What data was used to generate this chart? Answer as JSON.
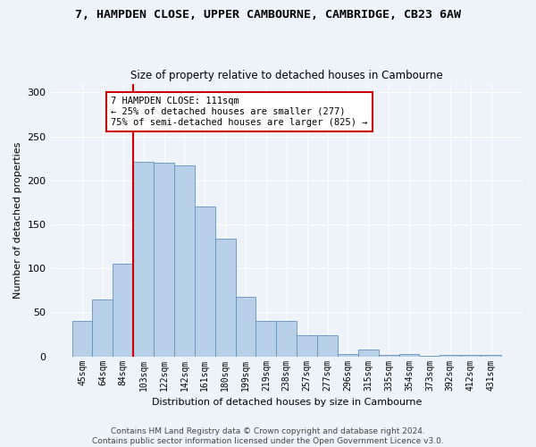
{
  "title": "7, HAMPDEN CLOSE, UPPER CAMBOURNE, CAMBRIDGE, CB23 6AW",
  "subtitle": "Size of property relative to detached houses in Cambourne",
  "xlabel": "Distribution of detached houses by size in Cambourne",
  "ylabel": "Number of detached properties",
  "categories": [
    "45sqm",
    "64sqm",
    "84sqm",
    "103sqm",
    "122sqm",
    "142sqm",
    "161sqm",
    "180sqm",
    "199sqm",
    "219sqm",
    "238sqm",
    "257sqm",
    "277sqm",
    "296sqm",
    "315sqm",
    "335sqm",
    "354sqm",
    "373sqm",
    "392sqm",
    "412sqm",
    "431sqm"
  ],
  "values": [
    40,
    65,
    105,
    221,
    220,
    217,
    170,
    134,
    68,
    40,
    40,
    24,
    24,
    3,
    8,
    2,
    3,
    1,
    2,
    2,
    2
  ],
  "bar_color": "#b8cfe8",
  "bar_edge_color": "#6090c0",
  "vline_color": "#cc0000",
  "annotation_text": "7 HAMPDEN CLOSE: 111sqm\n← 25% of detached houses are smaller (277)\n75% of semi-detached houses are larger (825) →",
  "annotation_box_color": "white",
  "annotation_box_edge_color": "#cc0000",
  "footer": "Contains HM Land Registry data © Crown copyright and database right 2024.\nContains public sector information licensed under the Open Government Licence v3.0.",
  "ylim": [
    0,
    310
  ],
  "yticks": [
    0,
    50,
    100,
    150,
    200,
    250,
    300
  ],
  "background_color": "#eef2f9",
  "figsize": [
    6.0,
    5.0
  ],
  "dpi": 100
}
